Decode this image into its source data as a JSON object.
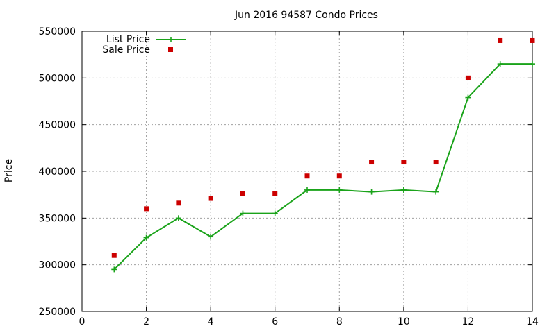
{
  "chart_data": {
    "type": "line",
    "title": "Jun 2016 94587 Condo Prices",
    "xlabel": "",
    "ylabel": "Price",
    "xlim": [
      0,
      14
    ],
    "ylim": [
      250000,
      550000
    ],
    "x_ticks": [
      0,
      2,
      4,
      6,
      8,
      10,
      12,
      14
    ],
    "y_ticks": [
      250000,
      300000,
      350000,
      400000,
      450000,
      500000,
      550000
    ],
    "x_tick_labels": [
      "0",
      "2",
      "4",
      "6",
      "8",
      "10",
      "12",
      "14"
    ],
    "y_tick_labels": [
      "250000",
      "300000",
      "350000",
      "400000",
      "450000",
      "500000",
      "550000"
    ],
    "grid": true,
    "legend_position": "top-left",
    "series": [
      {
        "name": "List Price",
        "style": "linespoints",
        "marker": "plus",
        "color": "#1aa31a",
        "x": [
          1,
          2,
          3,
          4,
          5,
          6,
          7,
          8,
          9,
          10,
          11,
          12,
          13,
          14
        ],
        "values": [
          295000,
          329000,
          350000,
          330000,
          355000,
          355000,
          380000,
          380000,
          378000,
          380000,
          378000,
          479000,
          515000,
          515000
        ]
      },
      {
        "name": "Sale Price",
        "style": "points",
        "marker": "square",
        "color": "#cc0000",
        "x": [
          1,
          2,
          3,
          4,
          5,
          6,
          7,
          8,
          9,
          10,
          11,
          12,
          13,
          14
        ],
        "values": [
          310000,
          360000,
          366000,
          371000,
          376000,
          376000,
          395000,
          395000,
          410000,
          410000,
          410000,
          500000,
          540000,
          540000
        ]
      }
    ]
  }
}
